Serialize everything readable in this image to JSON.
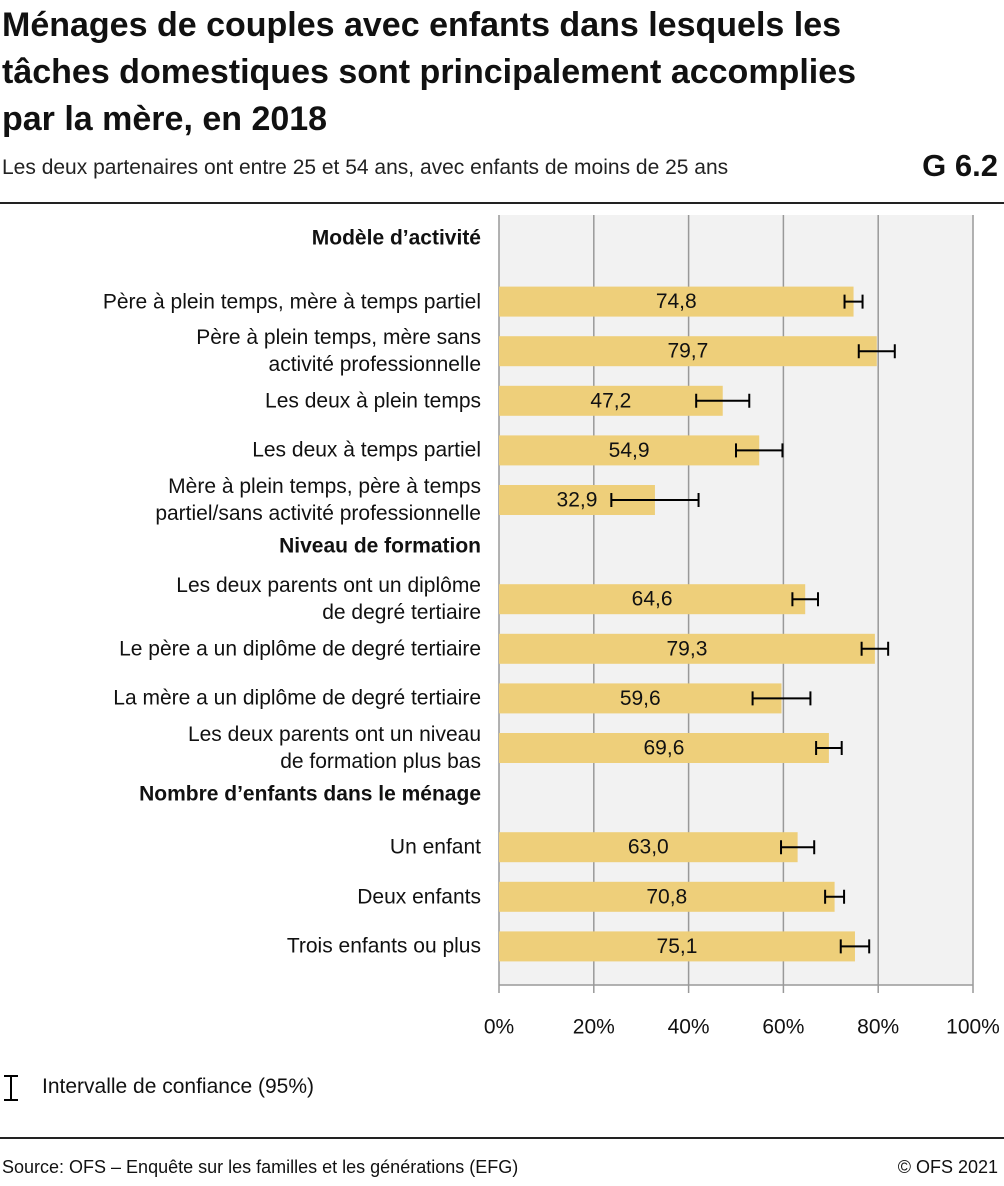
{
  "chart_data": {
    "type": "bar",
    "orientation": "horizontal",
    "title": "Ménages de couples avec enfants dans lesquels les tâches domestiques sont principalement accomplies par la mère, en 2018",
    "subtitle": "Les deux partenaires ont entre 25 et 54 ans, avec enfants de moins de 25 ans",
    "chart_number": "G 6.2",
    "groups": [
      {
        "name": "Modèle d’activité",
        "categories": [
          "Père à plein temps, mère à temps partiel",
          "Père à plein temps, mère sans\nactivité professionnelle",
          "Les deux à plein temps",
          "Les deux à temps partiel",
          "Mère à plein temps, père à temps\npartiel/sans activité professionnelle"
        ],
        "values": [
          74.8,
          79.7,
          47.2,
          54.9,
          32.9
        ],
        "value_labels": [
          "74,8",
          "79,7",
          "47,2",
          "54,9",
          "32,9"
        ],
        "errors": [
          1.9,
          3.8,
          5.6,
          4.9,
          9.2
        ]
      },
      {
        "name": "Niveau de formation",
        "categories": [
          "Les deux parents ont un diplôme\nde degré tertiaire",
          "Le père a un diplôme de degré tertiaire",
          "La mère a un diplôme de degré tertiaire",
          "Les deux parents ont un niveau\nde formation plus bas"
        ],
        "values": [
          64.6,
          79.3,
          59.6,
          69.6
        ],
        "value_labels": [
          "64,6",
          "79,3",
          "59,6",
          "69,6"
        ],
        "errors": [
          2.7,
          2.8,
          6.1,
          2.7
        ]
      },
      {
        "name": "Nombre d’enfants dans le ménage",
        "categories": [
          "Un enfant",
          "Deux enfants",
          "Trois enfants ou plus"
        ],
        "values": [
          63.0,
          70.8,
          75.1
        ],
        "value_labels": [
          "63,0",
          "70,8",
          "75,1"
        ],
        "errors": [
          3.5,
          2.0,
          3.0
        ]
      }
    ],
    "color": "#eecf7a",
    "error_color": "#000000",
    "background": "#f2f2f2",
    "grid": true,
    "xlim": [
      0,
      100
    ],
    "xticks": [
      {
        "value": 0,
        "label": "0%"
      },
      {
        "value": 20,
        "label": "20%"
      },
      {
        "value": 40,
        "label": "40%"
      },
      {
        "value": 60,
        "label": "60%"
      },
      {
        "value": 80,
        "label": "80%"
      },
      {
        "value": 100,
        "label": "100%"
      }
    ],
    "legend": {
      "label": "Intervalle de confiance (95%)",
      "position": "bottom-left"
    },
    "source": "Source: OFS – Enquête sur les familles et les générations (EFG)",
    "copyright": "© OFS 2021"
  }
}
